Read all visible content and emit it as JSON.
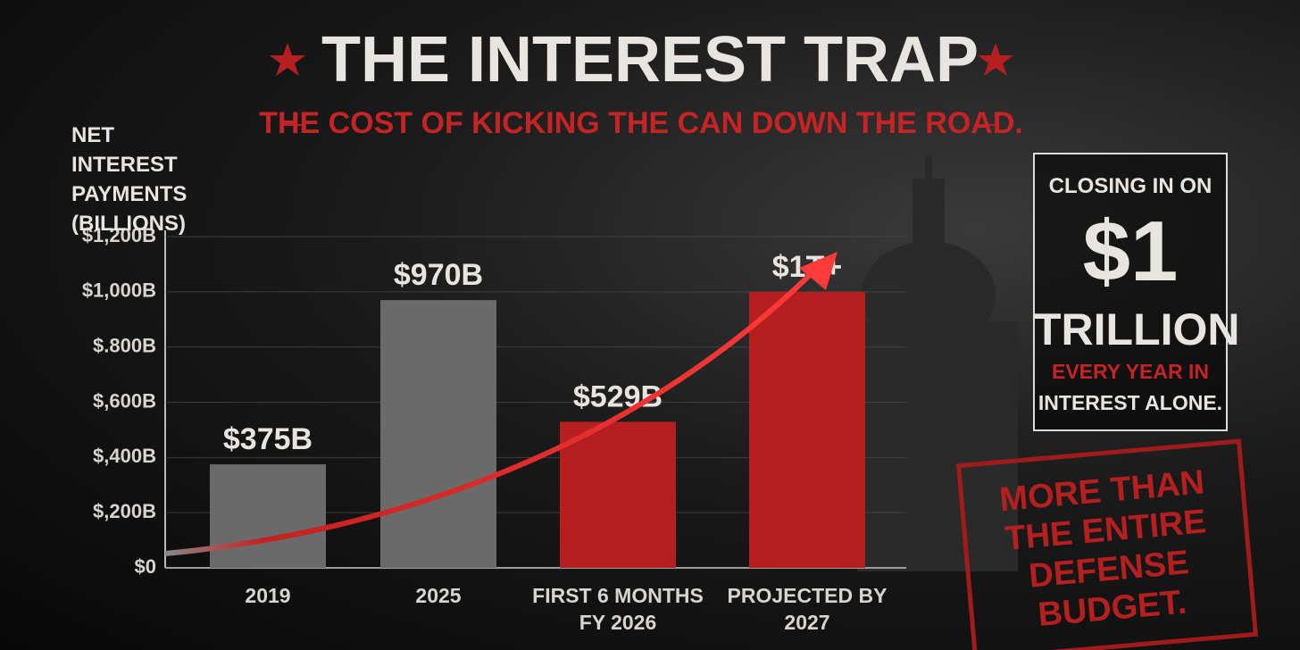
{
  "chart_data": {
    "type": "bar",
    "title": "THE INTEREST TRAP",
    "subtitle": "THE COST OF KICKING THE CAN DOWN THE ROAD.",
    "y_label": "NET INTEREST PAYMENTS (BILLIONS)",
    "categories": [
      "2019",
      "2025",
      "FIRST 6 MONTHS FY 2026",
      "PROJECTED BY 2027"
    ],
    "values": [
      375,
      970,
      529,
      1000
    ],
    "value_labels": [
      "$375B",
      "$970B",
      "$529B",
      "$1T+"
    ],
    "colors": [
      "#6a6a6a",
      "#6a6a6a",
      "#b51f1f",
      "#b51f1f"
    ],
    "ylim": [
      0,
      1200
    ],
    "yticks": [
      {
        "value": 0,
        "label": "$0"
      },
      {
        "value": 200,
        "label": "$,200B"
      },
      {
        "value": 400,
        "label": "$,400B"
      },
      {
        "value": 600,
        "label": "$,600B"
      },
      {
        "value": 800,
        "label": "$.800B"
      },
      {
        "value": 1000,
        "label": "$1,000B"
      },
      {
        "value": 1200,
        "label": "$1,200B"
      }
    ],
    "grid": true,
    "annotations": {
      "callout": [
        "CLOSING IN ON",
        "$1",
        "TRILLION",
        "EVERY YEAR IN",
        "INTEREST ALONE."
      ],
      "stamp": "MORE THAN THE ENTIRE DEFENSE BUDGET."
    }
  }
}
